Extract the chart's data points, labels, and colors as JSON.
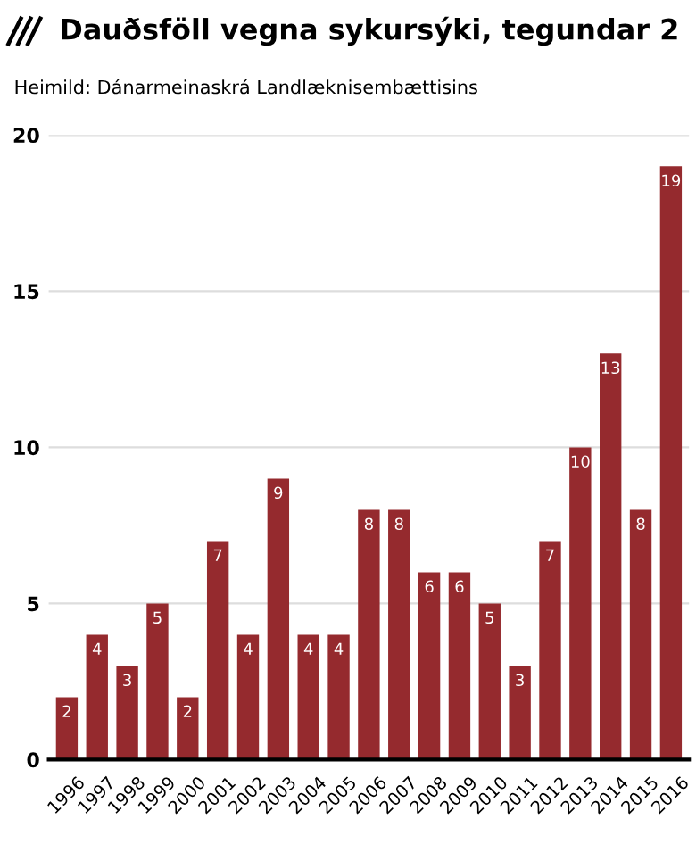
{
  "chart_data": {
    "type": "bar",
    "title": "Dauðsföll vegna sykursýki, tegundar 2",
    "subtitle": "Heimild: Dánarmeinaskrá Landlæknisembættisins",
    "categories": [
      "1996",
      "1997",
      "1998",
      "1999",
      "2000",
      "2001",
      "2002",
      "2003",
      "2004",
      "2005",
      "2006",
      "2007",
      "2008",
      "2009",
      "2010",
      "2011",
      "2012",
      "2013",
      "2014",
      "2015",
      "2016"
    ],
    "values": [
      2,
      4,
      3,
      5,
      2,
      7,
      4,
      9,
      4,
      4,
      8,
      8,
      6,
      6,
      5,
      3,
      7,
      10,
      13,
      8,
      19
    ],
    "color": "#952a2e",
    "ylim": [
      0,
      20
    ],
    "yticks": [
      0,
      5,
      10,
      15,
      20
    ],
    "grid": "y",
    "data_labels": true
  }
}
